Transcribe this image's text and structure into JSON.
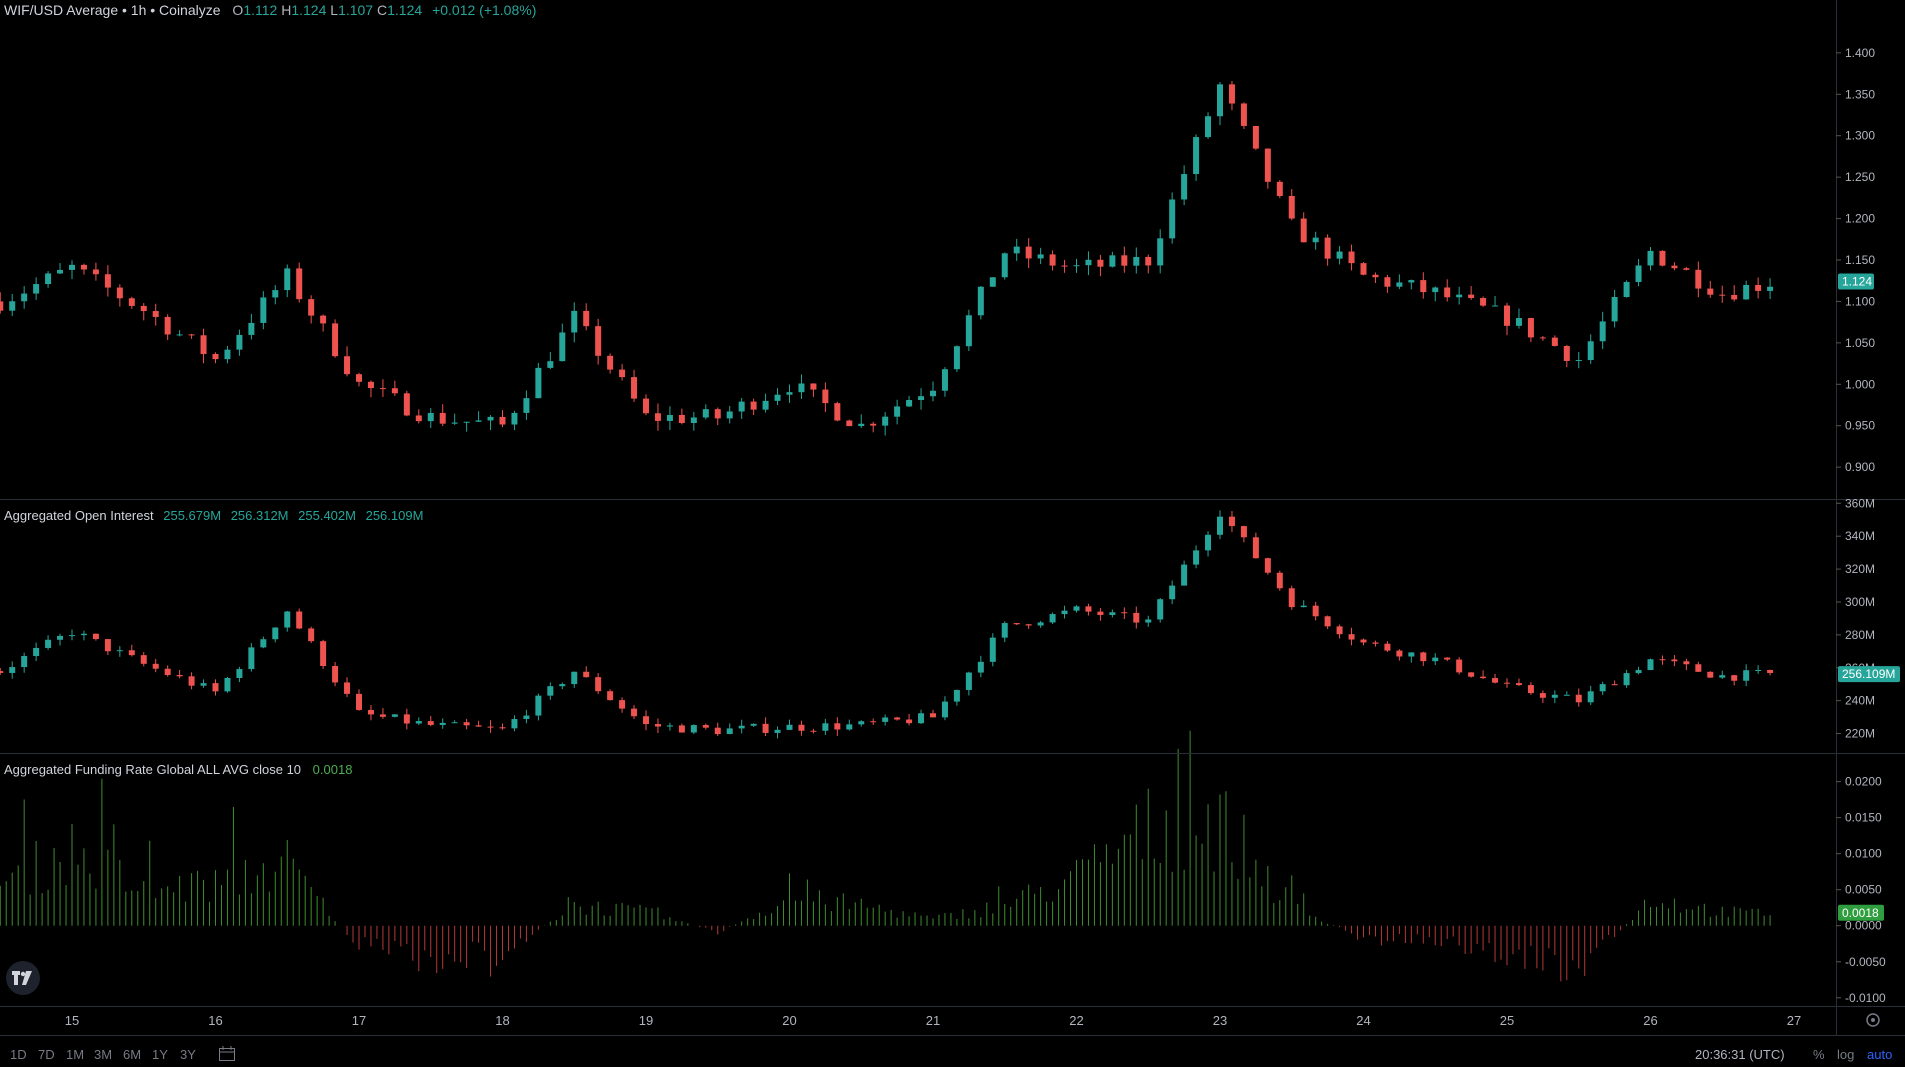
{
  "price_legend": {
    "title": "WIF/USD Average • 1h • Coinalyze",
    "o_label": "O",
    "o": "1.112",
    "h_label": "H",
    "h": "1.124",
    "l_label": "L",
    "l": "1.107",
    "c_label": "C",
    "c": "1.124",
    "change": "+0.012 (+1.08%)"
  },
  "oi_legend": {
    "title": "Aggregated Open Interest",
    "v1": "255.679M",
    "v2": "256.312M",
    "v3": "255.402M",
    "v4": "256.109M"
  },
  "fr_legend": {
    "title": "Aggregated Funding Rate Global ALL AVG close 10",
    "value": "0.0018"
  },
  "colors": {
    "up": "#26a69a",
    "down": "#ef5350",
    "fr_pos": "#3e8e2e",
    "fr_neg": "#b23a3a",
    "grid": "#2a2e39",
    "axis_text": "#b2b5be",
    "badge_green": "#2e9e3e"
  },
  "bottom": {
    "ranges": [
      "1D",
      "7D",
      "1M",
      "3M",
      "6M",
      "1Y",
      "3Y"
    ],
    "time": "20:36:31 (UTC)",
    "pct": "%",
    "log": "log",
    "auto": "auto"
  },
  "chart_data": [
    {
      "type": "candlestick",
      "panel": "price",
      "title": "WIF/USD Average • 1h • Coinalyze",
      "ylim": [
        0.87,
        1.43
      ],
      "yticks": [
        "0.900",
        "0.950",
        "1.000",
        "1.050",
        "1.100",
        "1.150",
        "1.200",
        "1.250",
        "1.300",
        "1.350",
        "1.400"
      ],
      "last_value": "1.124",
      "x_days": [
        14.5,
        15,
        15.5,
        16,
        16.5,
        17,
        17.5,
        18,
        18.5,
        19,
        19.5,
        20,
        20.5,
        21,
        21.5,
        22,
        22.5,
        23,
        23.5,
        24,
        24.5,
        25,
        25.5,
        26,
        26.5,
        26.85
      ],
      "close": [
        1.1,
        1.14,
        1.09,
        1.03,
        1.13,
        1.0,
        0.96,
        0.95,
        1.08,
        0.96,
        0.96,
        1.0,
        0.95,
        1.0,
        1.16,
        1.14,
        1.15,
        1.36,
        1.19,
        1.13,
        1.11,
        1.08,
        1.03,
        1.16,
        1.11,
        1.124
      ]
    },
    {
      "type": "candlestick",
      "panel": "open_interest",
      "title": "Aggregated Open Interest",
      "ylim": [
        210,
        362
      ],
      "yticks": [
        "220M",
        "240M",
        "260M",
        "280M",
        "300M",
        "320M",
        "340M",
        "360M"
      ],
      "last_value": "256.109M",
      "x_days": [
        14.5,
        15,
        15.5,
        16,
        16.5,
        17,
        17.5,
        18,
        18.5,
        19,
        19.5,
        20,
        20.5,
        21,
        21.5,
        22,
        22.5,
        23,
        23.5,
        24,
        24.5,
        25,
        25.5,
        26,
        26.5,
        26.85
      ],
      "close": [
        258,
        282,
        262,
        245,
        295,
        232,
        225,
        222,
        258,
        225,
        222,
        224,
        225,
        230,
        285,
        295,
        288,
        355,
        300,
        275,
        265,
        248,
        240,
        265,
        255,
        256.1
      ]
    },
    {
      "type": "bar",
      "panel": "funding_rate",
      "title": "Aggregated Funding Rate Global ALL AVG close 10",
      "ylim": [
        -0.011,
        0.023
      ],
      "yticks": [
        "-0.0100",
        "-0.0050",
        "0.0000",
        "0.0050",
        "0.0100",
        "0.0150",
        "0.0200"
      ],
      "last_value": "0.0018",
      "x_days": [
        14.5,
        15,
        15.5,
        16,
        16.5,
        17,
        17.5,
        18,
        18.5,
        19,
        19.5,
        20,
        20.5,
        21,
        21.5,
        22,
        22.5,
        23,
        23.5,
        24,
        24.5,
        25,
        25.5,
        26,
        26.5,
        26.85
      ],
      "values": [
        0.006,
        0.011,
        0.005,
        0.006,
        0.009,
        -0.003,
        -0.005,
        -0.004,
        0.003,
        0.002,
        -0.001,
        0.004,
        0.003,
        0.001,
        0.003,
        0.007,
        0.014,
        0.015,
        0.003,
        -0.002,
        -0.002,
        -0.004,
        -0.007,
        0.004,
        0.002,
        0.0018
      ]
    }
  ],
  "x_axis": {
    "labels": [
      "15",
      "16",
      "17",
      "18",
      "19",
      "20",
      "21",
      "22",
      "23",
      "24",
      "25",
      "26",
      "27"
    ]
  }
}
